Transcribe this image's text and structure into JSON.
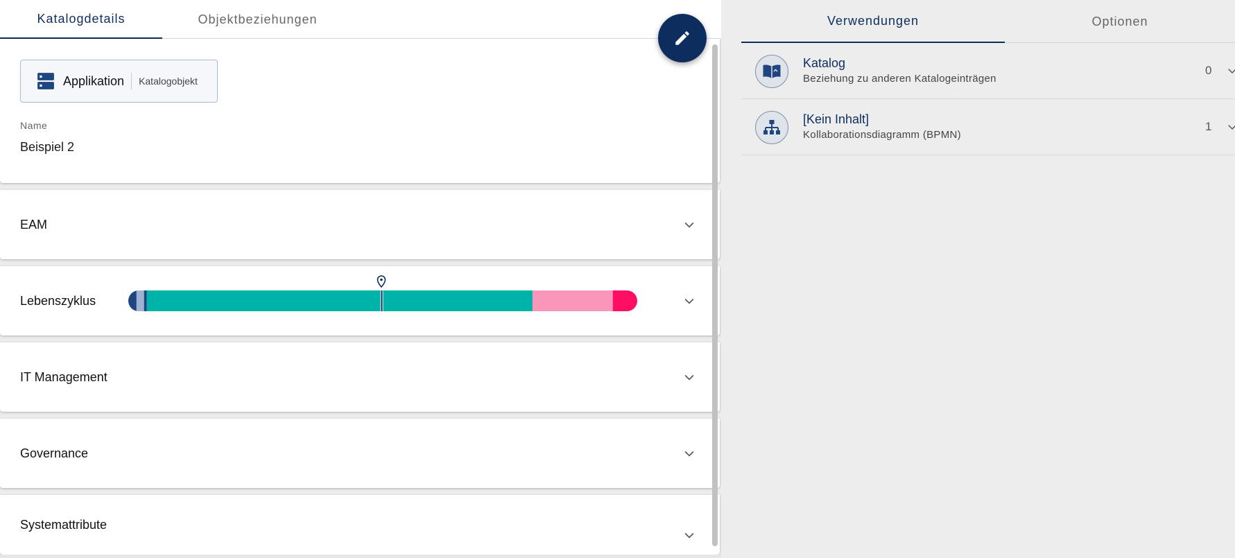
{
  "left_tabs": [
    {
      "label": "Katalogdetails",
      "active": true
    },
    {
      "label": "Objektbeziehungen",
      "active": false
    }
  ],
  "edit_button": {
    "icon": "pencil-icon"
  },
  "object": {
    "type_name": "Applikation",
    "type_kind": "Katalogobjekt",
    "type_icon": "server-icon",
    "name_label": "Name",
    "name_value": "Beispiel 2"
  },
  "sections": [
    {
      "title": "EAM"
    },
    {
      "title": "Lebenszyklus"
    },
    {
      "title": "IT Management"
    },
    {
      "title": "Governance"
    },
    {
      "title": "Systemattribute"
    }
  ],
  "lifecycle": {
    "segments": [
      {
        "fraction": 0.016,
        "color": "#1f4680"
      },
      {
        "fraction": 0.015,
        "color": "#9fb2d4"
      },
      {
        "fraction": 0.005,
        "color": "#1f4680"
      },
      {
        "fraction": 0.758,
        "color": "#00b3a8"
      },
      {
        "fraction": 0.158,
        "color": "#fb96bb"
      },
      {
        "fraction": 0.048,
        "color": "#ff0f64"
      }
    ],
    "marker_fraction": 0.498
  },
  "right_tabs": [
    {
      "label": "Verwendungen",
      "active": true
    },
    {
      "label": "Optionen",
      "active": false
    }
  ],
  "usages": [
    {
      "title": "Katalog",
      "subtitle": "Beziehung zu anderen Katalogeinträgen",
      "count": "0",
      "icon": "book-icon"
    },
    {
      "title": "[Kein Inhalt]",
      "subtitle": "Kollaborationsdiagramm (BPMN)",
      "count": "1",
      "icon": "hierarchy-icon"
    }
  ],
  "colors": {
    "primary": "#0d2d5e",
    "accent_teal": "#00b3a8",
    "pink": "#fb96bb",
    "magenta": "#ff0f64"
  }
}
